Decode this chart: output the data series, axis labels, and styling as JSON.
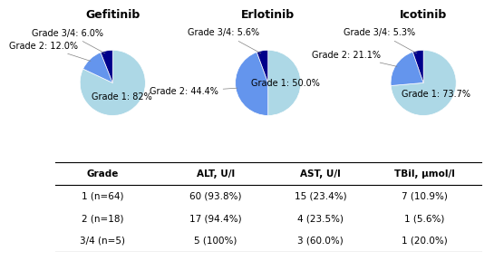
{
  "pies": [
    {
      "title": "Gefitinib",
      "labels": [
        "Grade 1: 82%",
        "Grade 2: 12.0%",
        "Grade 3/4: 6.0%"
      ],
      "values": [
        82.0,
        12.0,
        6.0
      ],
      "colors": [
        "#add8e6",
        "#6495ed",
        "#00008b"
      ]
    },
    {
      "title": "Erlotinib",
      "labels": [
        "Grade 1: 50.0%",
        "Grade 2: 44.4%",
        "Grade 3/4: 5.6%"
      ],
      "values": [
        50.0,
        44.4,
        5.6
      ],
      "colors": [
        "#add8e6",
        "#6495ed",
        "#00008b"
      ]
    },
    {
      "title": "Icotinib",
      "labels": [
        "Grade 1: 73.7%",
        "Grade 2: 21.1%",
        "Grade 3/4: 5.3%"
      ],
      "values": [
        73.7,
        21.1,
        5.3
      ],
      "colors": [
        "#add8e6",
        "#6495ed",
        "#00008b"
      ]
    }
  ],
  "table": {
    "col_labels": [
      "Grade",
      "ALT, U/l",
      "AST, U/l",
      "TBil, μmol/l"
    ],
    "rows": [
      [
        "1 (n=64)",
        "60 (93.8%)",
        "15 (23.4%)",
        "7 (10.9%)"
      ],
      [
        "2 (n=18)",
        "17 (94.4%)",
        "4 (23.5%)",
        "1 (5.6%)"
      ],
      [
        "3/4 (n=5)",
        "5 (100%)",
        "3 (60.0%)",
        "1 (20.0%)"
      ]
    ]
  },
  "bg_color": "#ffffff",
  "title_fontsize": 9,
  "label_fontsize": 7.0,
  "table_fontsize": 7.5
}
